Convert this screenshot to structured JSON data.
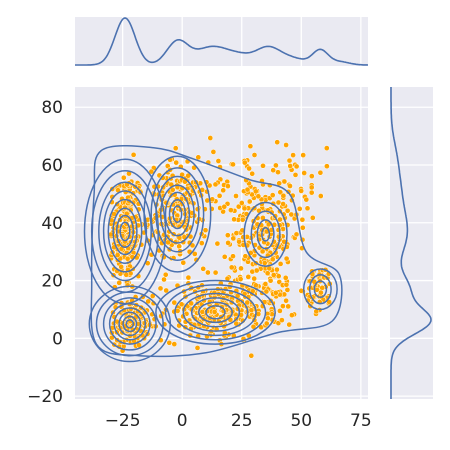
{
  "chart_data": {
    "type": "scatter",
    "title": "",
    "xlabel": "",
    "ylabel": "",
    "xlim": [
      -45,
      78
    ],
    "ylim": [
      -21,
      87
    ],
    "x_ticks": [
      -25,
      0,
      25,
      50,
      75
    ],
    "y_ticks": [
      -20,
      0,
      20,
      40,
      60,
      80
    ],
    "x_tick_labels": [
      "−25",
      "0",
      "25",
      "50",
      "75"
    ],
    "y_tick_labels": [
      "−20",
      "0",
      "20",
      "40",
      "60",
      "80"
    ],
    "grid": true,
    "legend": "none",
    "marginal_x": "kde",
    "marginal_y": "kde",
    "joint_overlay": "kde-contours",
    "colors": {
      "background": "#eaeaf2",
      "grid": "#ffffff",
      "points": "#ffa500",
      "point_edge": "#ffffff",
      "kde_line": "#4c72b0"
    },
    "clusters": [
      {
        "center": [
          -24,
          37
        ],
        "spread": [
          4,
          11
        ],
        "n": 230
      },
      {
        "center": [
          -22,
          5
        ],
        "spread": [
          4,
          4
        ],
        "n": 150
      },
      {
        "center": [
          -2,
          43
        ],
        "spread": [
          6,
          9
        ],
        "n": 200
      },
      {
        "center": [
          14,
          9
        ],
        "spread": [
          11,
          5
        ],
        "n": 230
      },
      {
        "center": [
          35,
          36
        ],
        "spread": [
          7,
          8
        ],
        "n": 150
      },
      {
        "center": [
          32,
          16
        ],
        "spread": [
          9,
          6
        ],
        "n": 110
      },
      {
        "center": [
          58,
          17
        ],
        "spread": [
          3,
          4
        ],
        "n": 60
      },
      {
        "center": [
          20,
          52
        ],
        "spread": [
          14,
          8
        ],
        "n": 80
      },
      {
        "center": [
          45,
          52
        ],
        "spread": [
          8,
          9
        ],
        "n": 60
      }
    ],
    "kde_contours": [
      {
        "center": [
          -24,
          37
        ],
        "radii": [
          [
            17,
            25
          ],
          [
            14,
            21
          ],
          [
            11,
            17
          ],
          [
            9,
            14
          ],
          [
            7,
            11
          ],
          [
            5,
            8
          ],
          [
            3.5,
            5.5
          ],
          [
            2,
            3.2
          ]
        ]
      },
      {
        "center": [
          -22,
          5
        ],
        "radii": [
          [
            17,
            13
          ],
          [
            14,
            11
          ],
          [
            11,
            9
          ],
          [
            8.5,
            7
          ],
          [
            6.5,
            5.5
          ],
          [
            4.5,
            4
          ],
          [
            2.8,
            2.6
          ],
          [
            1.5,
            1.4
          ]
        ]
      },
      {
        "center": [
          -2,
          43
        ],
        "radii": [
          [
            14,
            20
          ],
          [
            11,
            16
          ],
          [
            9,
            13
          ],
          [
            7,
            10
          ],
          [
            5,
            7.5
          ],
          [
            3.3,
            5
          ],
          [
            1.8,
            2.8
          ]
        ]
      },
      {
        "center": [
          14,
          9
        ],
        "radii": [
          [
            25,
            11
          ],
          [
            21,
            9.5
          ],
          [
            17,
            8
          ],
          [
            13.5,
            6.5
          ],
          [
            10,
            5
          ],
          [
            7,
            3.5
          ],
          [
            4,
            2.2
          ]
        ]
      },
      {
        "center": [
          35,
          36
        ],
        "radii": [
          [
            9,
            11
          ],
          [
            6,
            8
          ],
          [
            3.5,
            5
          ],
          [
            1.6,
            2.3
          ]
        ]
      },
      {
        "center": [
          58,
          17
        ],
        "radii": [
          [
            7,
            7
          ],
          [
            4.5,
            5
          ],
          [
            2.5,
            2.8
          ]
        ]
      }
    ],
    "kde_envelope": [
      [
        -34,
        65
      ],
      [
        -12,
        66
      ],
      [
        5,
        62
      ],
      [
        28,
        55
      ],
      [
        45,
        50
      ],
      [
        52,
        30
      ],
      [
        66,
        22
      ],
      [
        63,
        6
      ],
      [
        40,
        2
      ],
      [
        10,
        -5
      ],
      [
        -18,
        -6
      ],
      [
        -36,
        -2
      ],
      [
        -38,
        20
      ],
      [
        -37,
        50
      ]
    ],
    "marginal_x_peaks": [
      {
        "mu": -24,
        "sigma": 4.2,
        "w": 0.3
      },
      {
        "mu": -2,
        "sigma": 4.5,
        "w": 0.16
      },
      {
        "mu": 12,
        "sigma": 6.5,
        "w": 0.17
      },
      {
        "mu": 24,
        "sigma": 6,
        "w": 0.08
      },
      {
        "mu": 36,
        "sigma": 5,
        "w": 0.12
      },
      {
        "mu": 46,
        "sigma": 6,
        "w": 0.06
      },
      {
        "mu": 58,
        "sigma": 3.2,
        "w": 0.07
      },
      {
        "mu": 66,
        "sigma": 4,
        "w": 0.02
      }
    ],
    "marginal_y_peaks": [
      {
        "mu": 6,
        "sigma": 4.6,
        "w": 0.38
      },
      {
        "mu": 17,
        "sigma": 5,
        "w": 0.18
      },
      {
        "mu": 36,
        "sigma": 8,
        "w": 0.26
      },
      {
        "mu": 52,
        "sigma": 8,
        "w": 0.14
      },
      {
        "mu": 64,
        "sigma": 6,
        "w": 0.04
      }
    ]
  }
}
